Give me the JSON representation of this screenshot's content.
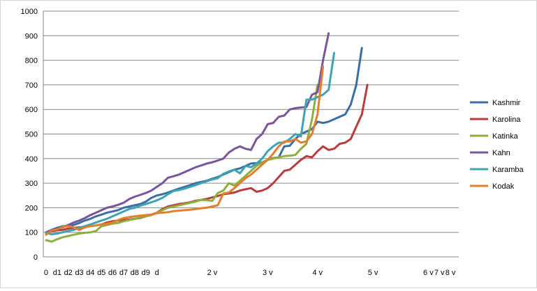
{
  "chart_data": {
    "type": "line",
    "title": "",
    "xlabel": "",
    "ylabel": "",
    "ylim": [
      0,
      1000
    ],
    "y_ticks": [
      0,
      100,
      200,
      300,
      400,
      500,
      600,
      700,
      800,
      900,
      1000
    ],
    "grid": "horizontal",
    "legend": "right",
    "x_tick_labels": [
      "0",
      "d1",
      "d2",
      "d3",
      "d4",
      "d5",
      "d6",
      "d7",
      "d8",
      "d9",
      "d",
      "2 v",
      "3 v",
      "4 v",
      "5 v",
      "6 v",
      "7 v",
      "8 v"
    ],
    "x_tick_positions": [
      0,
      2,
      4,
      6,
      8,
      10,
      12,
      14,
      16,
      18,
      20,
      30,
      40,
      49,
      59,
      69,
      71,
      73
    ],
    "x_count": 75,
    "series": [
      {
        "name": "Kashmir",
        "color": "#3b6ea5",
        "values": [
          100,
          110,
          118,
          125,
          125,
          130,
          138,
          148,
          155,
          165,
          172,
          180,
          185,
          190,
          200,
          205,
          210,
          215,
          225,
          240,
          250,
          255,
          262,
          270,
          278,
          285,
          292,
          300,
          305,
          310,
          318,
          325,
          335,
          345,
          355,
          360,
          370,
          380,
          382,
          385,
          395,
          402,
          405,
          450,
          452,
          480,
          500,
          510,
          520,
          550,
          545,
          550,
          560,
          570,
          580,
          620,
          700,
          850
        ]
      },
      {
        "name": "Karolina",
        "color": "#b83c3b",
        "values": [
          95,
          105,
          108,
          110,
          115,
          118,
          120,
          122,
          125,
          128,
          132,
          140,
          145,
          148,
          150,
          152,
          155,
          158,
          165,
          172,
          180,
          195,
          205,
          210,
          215,
          218,
          222,
          228,
          232,
          236,
          242,
          248,
          255,
          258,
          262,
          270,
          275,
          280,
          265,
          270,
          280,
          300,
          325,
          350,
          355,
          375,
          395,
          410,
          405,
          430,
          450,
          435,
          440,
          460,
          465,
          480,
          530,
          580,
          700
        ]
      },
      {
        "name": "Katinka",
        "color": "#8fae3e",
        "values": [
          68,
          62,
          72,
          80,
          85,
          90,
          95,
          98,
          100,
          105,
          125,
          130,
          135,
          138,
          145,
          150,
          155,
          160,
          165,
          170,
          180,
          190,
          200,
          205,
          210,
          215,
          220,
          225,
          232,
          230,
          228,
          260,
          270,
          300,
          290,
          310,
          330,
          350,
          370,
          385,
          395,
          400,
          405,
          410,
          412,
          415,
          440,
          460,
          560,
          700
        ]
      },
      {
        "name": "Kahn",
        "color": "#7b549a",
        "values": [
          100,
          105,
          115,
          120,
          130,
          140,
          148,
          158,
          170,
          180,
          190,
          200,
          205,
          212,
          220,
          235,
          245,
          252,
          260,
          270,
          285,
          300,
          322,
          328,
          335,
          345,
          355,
          365,
          372,
          380,
          385,
          392,
          400,
          425,
          440,
          450,
          440,
          435,
          480,
          500,
          540,
          545,
          570,
          575,
          600,
          605,
          608,
          610,
          660,
          670,
          800,
          910
        ]
      },
      {
        "name": "Karamba",
        "color": "#3ea3b2",
        "values": [
          98,
          92,
          95,
          100,
          105,
          110,
          118,
          125,
          132,
          140,
          148,
          155,
          165,
          175,
          185,
          195,
          200,
          208,
          215,
          222,
          230,
          240,
          255,
          268,
          272,
          278,
          285,
          292,
          300,
          308,
          315,
          320,
          338,
          348,
          355,
          340,
          370,
          365,
          380,
          400,
          430,
          450,
          465,
          465,
          480,
          500,
          490,
          640,
          640,
          650,
          660,
          680,
          830
        ]
      },
      {
        "name": "Kodak",
        "color": "#e27f2e",
        "values": [
          90,
          108,
          112,
          122,
          125,
          120,
          110,
          120,
          125,
          128,
          132,
          135,
          140,
          150,
          158,
          162,
          165,
          168,
          170,
          172,
          178,
          180,
          182,
          186,
          188,
          190,
          192,
          195,
          198,
          200,
          205,
          210,
          258,
          262,
          280,
          300,
          320,
          335,
          355,
          375,
          395,
          420,
          450,
          470,
          470,
          480,
          465,
          470,
          500,
          580,
          775
        ]
      }
    ]
  }
}
